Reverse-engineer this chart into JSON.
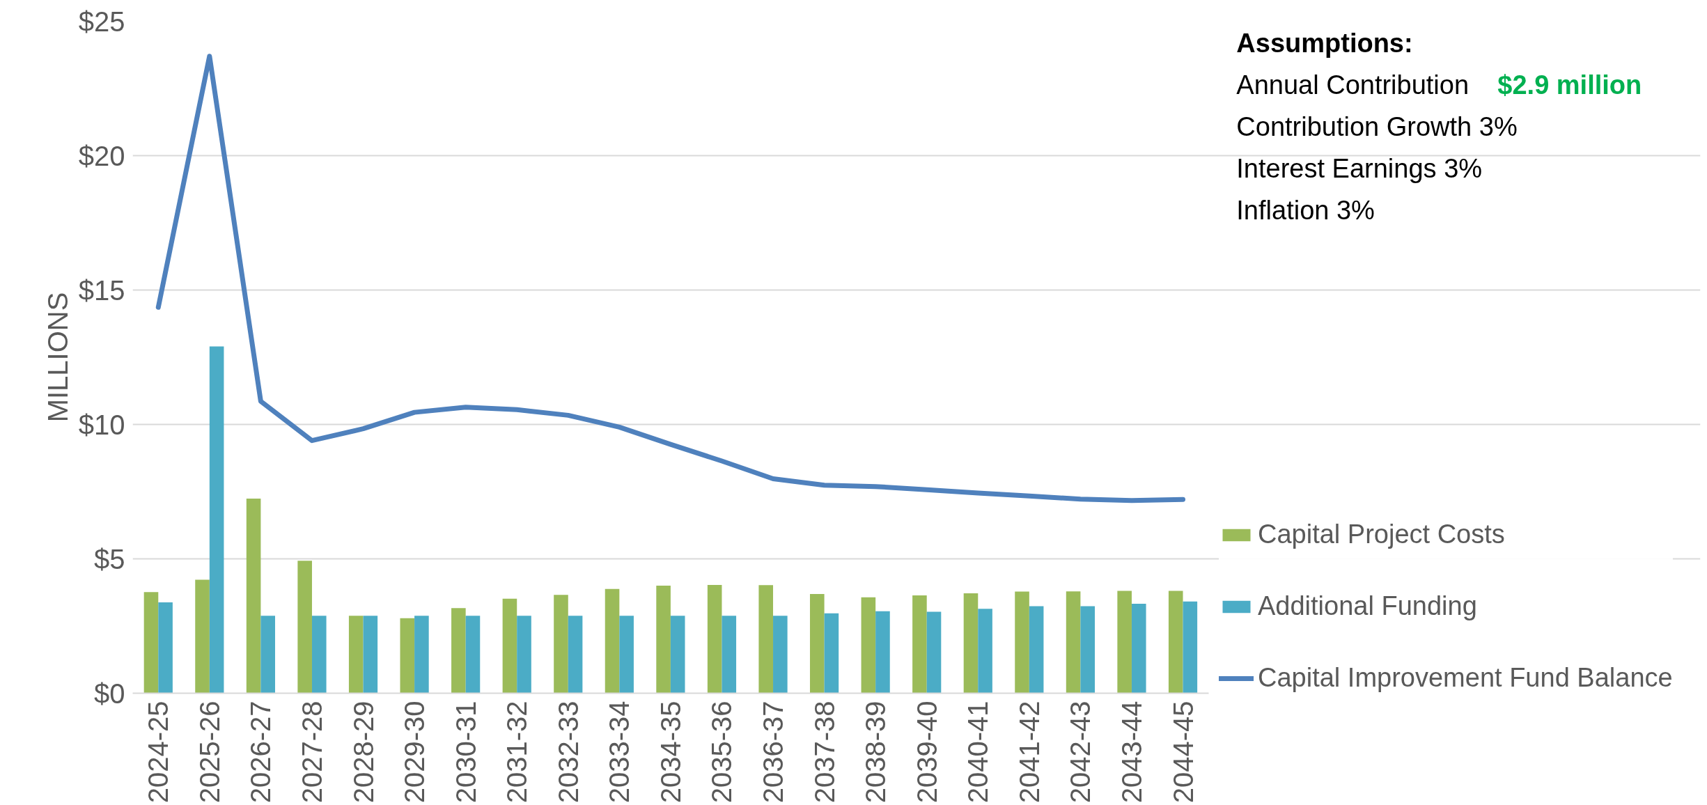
{
  "chart_data": {
    "type": "bar",
    "ylabel": "MILLIONS",
    "categories": [
      "2024-25",
      "2025-26",
      "2026-27",
      "2027-28",
      "2028-29",
      "2029-30",
      "2030-31",
      "2031-32",
      "2032-33",
      "2033-34",
      "2034-35",
      "2035-36",
      "2036-37",
      "2037-38",
      "2038-39",
      "2039-40",
      "2040-41",
      "2041-42",
      "2042-43",
      "2043-44",
      "2044-45"
    ],
    "series": [
      {
        "name": "Capital Project Costs",
        "color": "#9bbb59",
        "values": [
          3.76,
          4.22,
          7.24,
          4.93,
          2.88,
          2.79,
          3.17,
          3.52,
          3.66,
          3.88,
          4.0,
          4.03,
          4.02,
          3.69,
          3.57,
          3.64,
          3.72,
          3.78,
          3.79,
          3.81,
          3.81
        ]
      },
      {
        "name": "Additional Funding",
        "color": "#4bacc6",
        "values": [
          3.38,
          12.9,
          2.88,
          2.88,
          2.88,
          2.88,
          2.88,
          2.88,
          2.88,
          2.88,
          2.88,
          2.88,
          2.88,
          2.97,
          3.05,
          3.03,
          3.14,
          3.24,
          3.24,
          3.33,
          3.41
        ]
      },
      {
        "name": "Capital Improvement Fund Balance",
        "type": "line",
        "color": "#4f81bd",
        "values": [
          14.36,
          23.7,
          10.86,
          9.4,
          9.84,
          10.45,
          10.64,
          10.55,
          10.34,
          9.9,
          9.26,
          8.64,
          7.98,
          7.74,
          7.69,
          7.57,
          7.45,
          7.34,
          7.22,
          7.17,
          7.21
        ]
      }
    ],
    "ylim": [
      0,
      25
    ],
    "yticks": [
      {
        "value": 0,
        "label": "$0"
      },
      {
        "value": 5,
        "label": "$5"
      },
      {
        "value": 10,
        "label": "$10"
      },
      {
        "value": 15,
        "label": "$15"
      },
      {
        "value": 20,
        "label": "$20"
      },
      {
        "value": 25,
        "label": "$25"
      }
    ],
    "grid": "y",
    "legend": "right",
    "annotations": [
      "Assumptions:",
      "Annual Contribution",
      "$2.9 million",
      "Contribution Growth 3%",
      "Interest Earnings 3%",
      "Inflation 3%"
    ]
  }
}
